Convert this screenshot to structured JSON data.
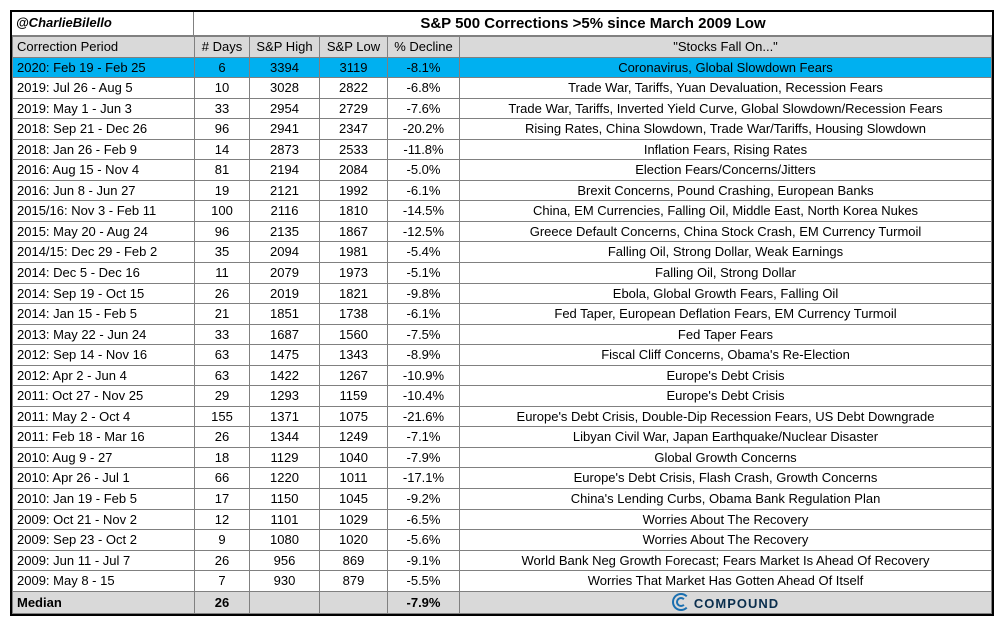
{
  "credit": "@CharlieBilello",
  "title": "S&P 500 Corrections >5% since March 2009 Low",
  "logo_text": "COMPOUND",
  "colors": {
    "border": "#000000",
    "grid": "#808080",
    "header_bg": "#d9d9d9",
    "highlight_bg": "#00b0f0",
    "median_bg": "#d9d9d9",
    "text": "#000000",
    "logo": "#1a6fb0"
  },
  "columns": {
    "period": "Correction Period",
    "days": "# Days",
    "high": "S&P High",
    "low": "S&P Low",
    "decline": "% Decline",
    "reason": "\"Stocks Fall On...\""
  },
  "rows": [
    {
      "period": "2020: Feb 19 - Feb 25",
      "days": "6",
      "high": "3394",
      "low": "3119",
      "decline": "-8.1%",
      "reason": "Coronavirus, Global Slowdown Fears",
      "highlight": true
    },
    {
      "period": "2019: Jul 26 - Aug 5",
      "days": "10",
      "high": "3028",
      "low": "2822",
      "decline": "-6.8%",
      "reason": "Trade War, Tariffs, Yuan Devaluation, Recession Fears"
    },
    {
      "period": "2019: May 1 - Jun 3",
      "days": "33",
      "high": "2954",
      "low": "2729",
      "decline": "-7.6%",
      "reason": "Trade War, Tariffs, Inverted Yield Curve, Global Slowdown/Recession Fears"
    },
    {
      "period": "2018: Sep 21 - Dec 26",
      "days": "96",
      "high": "2941",
      "low": "2347",
      "decline": "-20.2%",
      "reason": "Rising Rates, China Slowdown, Trade War/Tariffs, Housing Slowdown"
    },
    {
      "period": "2018: Jan 26 - Feb 9",
      "days": "14",
      "high": "2873",
      "low": "2533",
      "decline": "-11.8%",
      "reason": "Inflation Fears, Rising Rates"
    },
    {
      "period": "2016: Aug 15 - Nov 4",
      "days": "81",
      "high": "2194",
      "low": "2084",
      "decline": "-5.0%",
      "reason": "Election Fears/Concerns/Jitters"
    },
    {
      "period": "2016: Jun 8 - Jun 27",
      "days": "19",
      "high": "2121",
      "low": "1992",
      "decline": "-6.1%",
      "reason": "Brexit Concerns, Pound Crashing, European Banks"
    },
    {
      "period": "2015/16: Nov 3 - Feb 11",
      "days": "100",
      "high": "2116",
      "low": "1810",
      "decline": "-14.5%",
      "reason": "China, EM Currencies, Falling Oil, Middle East, North Korea Nukes"
    },
    {
      "period": "2015: May 20 - Aug 24",
      "days": "96",
      "high": "2135",
      "low": "1867",
      "decline": "-12.5%",
      "reason": "Greece Default Concerns, China Stock Crash, EM Currency Turmoil"
    },
    {
      "period": "2014/15: Dec 29 - Feb 2",
      "days": "35",
      "high": "2094",
      "low": "1981",
      "decline": "-5.4%",
      "reason": "Falling Oil, Strong Dollar, Weak Earnings"
    },
    {
      "period": "2014: Dec 5 - Dec 16",
      "days": "11",
      "high": "2079",
      "low": "1973",
      "decline": "-5.1%",
      "reason": "Falling Oil, Strong Dollar"
    },
    {
      "period": "2014: Sep 19 - Oct 15",
      "days": "26",
      "high": "2019",
      "low": "1821",
      "decline": "-9.8%",
      "reason": "Ebola, Global Growth Fears, Falling Oil"
    },
    {
      "period": "2014: Jan 15 - Feb 5",
      "days": "21",
      "high": "1851",
      "low": "1738",
      "decline": "-6.1%",
      "reason": "Fed Taper, European Deflation Fears, EM Currency Turmoil"
    },
    {
      "period": "2013: May 22 - Jun 24",
      "days": "33",
      "high": "1687",
      "low": "1560",
      "decline": "-7.5%",
      "reason": "Fed Taper Fears"
    },
    {
      "period": "2012: Sep 14 - Nov 16",
      "days": "63",
      "high": "1475",
      "low": "1343",
      "decline": "-8.9%",
      "reason": "Fiscal Cliff Concerns, Obama's Re-Election"
    },
    {
      "period": "2012: Apr 2 - Jun 4",
      "days": "63",
      "high": "1422",
      "low": "1267",
      "decline": "-10.9%",
      "reason": "Europe's Debt Crisis"
    },
    {
      "period": "2011: Oct 27 - Nov 25",
      "days": "29",
      "high": "1293",
      "low": "1159",
      "decline": "-10.4%",
      "reason": "Europe's Debt Crisis"
    },
    {
      "period": "2011: May 2 - Oct 4",
      "days": "155",
      "high": "1371",
      "low": "1075",
      "decline": "-21.6%",
      "reason": "Europe's Debt Crisis, Double-Dip Recession Fears, US Debt Downgrade"
    },
    {
      "period": "2011: Feb 18 - Mar 16",
      "days": "26",
      "high": "1344",
      "low": "1249",
      "decline": "-7.1%",
      "reason": "Libyan Civil War, Japan Earthquake/Nuclear Disaster"
    },
    {
      "period": "2010: Aug 9 - 27",
      "days": "18",
      "high": "1129",
      "low": "1040",
      "decline": "-7.9%",
      "reason": "Global Growth Concerns"
    },
    {
      "period": "2010: Apr 26 - Jul 1",
      "days": "66",
      "high": "1220",
      "low": "1011",
      "decline": "-17.1%",
      "reason": "Europe's Debt Crisis, Flash Crash, Growth Concerns"
    },
    {
      "period": "2010: Jan 19 - Feb 5",
      "days": "17",
      "high": "1150",
      "low": "1045",
      "decline": "-9.2%",
      "reason": "China's Lending Curbs, Obama Bank Regulation Plan"
    },
    {
      "period": "2009: Oct 21 - Nov 2",
      "days": "12",
      "high": "1101",
      "low": "1029",
      "decline": "-6.5%",
      "reason": "Worries About The Recovery"
    },
    {
      "period": "2009: Sep 23 - Oct 2",
      "days": "9",
      "high": "1080",
      "low": "1020",
      "decline": "-5.6%",
      "reason": "Worries About The Recovery"
    },
    {
      "period": "2009: Jun 11 - Jul 7",
      "days": "26",
      "high": "956",
      "low": "869",
      "decline": "-9.1%",
      "reason": "World Bank Neg Growth Forecast; Fears Market Is Ahead Of Recovery"
    },
    {
      "period": "2009: May 8 - 15",
      "days": "7",
      "high": "930",
      "low": "879",
      "decline": "-5.5%",
      "reason": "Worries That Market Has Gotten Ahead Of Itself"
    }
  ],
  "median": {
    "label": "Median",
    "days": "26",
    "high": "",
    "low": "",
    "decline": "-7.9%"
  }
}
